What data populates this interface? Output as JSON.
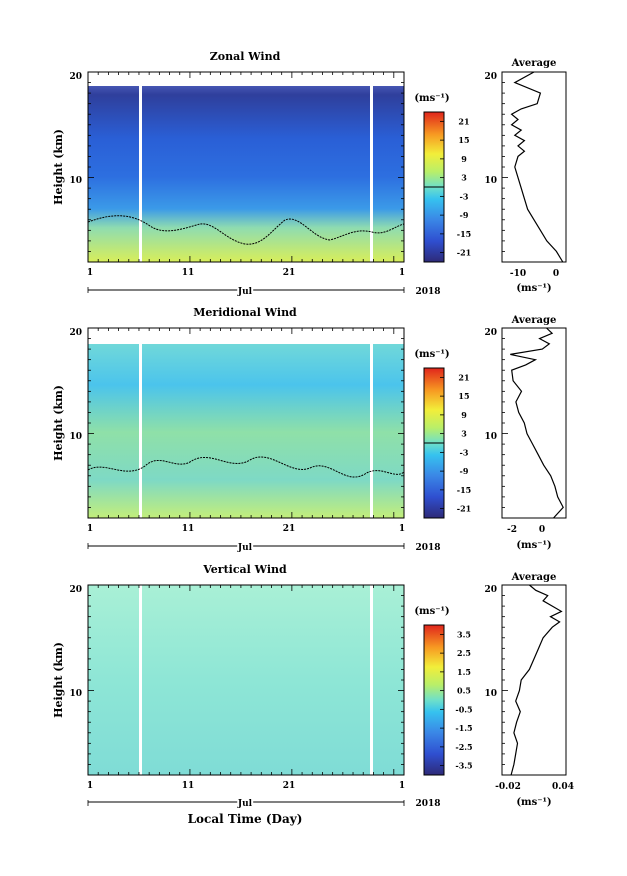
{
  "figure": {
    "xaxis_title": "Local Time (Day)",
    "year_label": "2018",
    "month_label": "Jul"
  },
  "chart_data": [
    {
      "type": "heatmap",
      "title": "Zonal Wind",
      "ylabel": "Height (km)",
      "xlabel": "Jul",
      "x_tick_labels": [
        "1",
        "11",
        "21",
        "1"
      ],
      "y_tick_labels": [
        "20",
        "10"
      ],
      "ylim": [
        2,
        20
      ],
      "xlim": [
        1,
        32
      ],
      "colorbar": {
        "unit": "(ms⁻¹)",
        "range": [
          -24,
          24
        ],
        "tick_labels": [
          "21",
          "15",
          "9",
          "3",
          "-3",
          "-9",
          "-15",
          "-21"
        ],
        "zero_line": true
      },
      "profile": {
        "title": "Average",
        "xlabel": "(ms⁻¹)",
        "x_tick_labels": [
          "-10",
          "0"
        ],
        "xlim": [
          -17,
          3
        ],
        "heights": [
          2,
          3,
          4,
          5,
          6,
          7,
          8,
          9,
          10,
          11,
          12,
          12.5,
          13,
          13.5,
          14,
          14.5,
          15,
          15.5,
          16,
          16.5,
          17,
          18,
          19,
          20
        ],
        "values": [
          2,
          0,
          -3,
          -5,
          -7,
          -9,
          -10,
          -11,
          -12,
          -13,
          -12,
          -10,
          -12,
          -10,
          -13,
          -11,
          -14,
          -12,
          -14,
          -11,
          -6,
          -5,
          -13,
          -7
        ]
      }
    },
    {
      "type": "heatmap",
      "title": "Meridional Wind",
      "ylabel": "Height (km)",
      "xlabel": "Jul",
      "x_tick_labels": [
        "1",
        "11",
        "21",
        "1"
      ],
      "y_tick_labels": [
        "20",
        "10"
      ],
      "ylim": [
        2,
        20
      ],
      "xlim": [
        1,
        32
      ],
      "colorbar": {
        "unit": "(ms⁻¹)",
        "range": [
          -24,
          24
        ],
        "tick_labels": [
          "21",
          "15",
          "9",
          "3",
          "-3",
          "-9",
          "-15",
          "-21"
        ],
        "zero_line": true
      },
      "profile": {
        "title": "Average",
        "xlabel": "(ms⁻¹)",
        "x_tick_labels": [
          "-2",
          "0"
        ],
        "xlim": [
          -3.2,
          1.4
        ],
        "heights": [
          2,
          3,
          4,
          5,
          6,
          7,
          8,
          9,
          10,
          11,
          12,
          13,
          14,
          15,
          16,
          16.5,
          17,
          17.5,
          18,
          18.5,
          19,
          19.5,
          20
        ],
        "values": [
          0.5,
          1.2,
          0.8,
          0.6,
          0.3,
          -0.2,
          -0.6,
          -1.0,
          -1.4,
          -1.6,
          -2.0,
          -2.2,
          -1.8,
          -2.4,
          -2.5,
          -1.5,
          -0.8,
          -2.6,
          -0.3,
          0.2,
          -0.5,
          0.4,
          0.0
        ]
      }
    },
    {
      "type": "heatmap",
      "title": "Vertical Wind",
      "ylabel": "Height (km)",
      "xlabel": "Jul",
      "x_tick_labels": [
        "1",
        "11",
        "21",
        "1"
      ],
      "y_tick_labels": [
        "20",
        "10"
      ],
      "ylim": [
        2,
        20
      ],
      "xlim": [
        1,
        32
      ],
      "colorbar": {
        "unit": "(ms⁻¹)",
        "range": [
          -4,
          4
        ],
        "tick_labels": [
          "3.5",
          "2.5",
          "1.5",
          "0.5",
          "-0.5",
          "-1.5",
          "-2.5",
          "-3.5"
        ],
        "zero_line": false
      },
      "profile": {
        "title": "Average",
        "xlabel": "(ms⁻¹)",
        "x_tick_labels": [
          "-0.02",
          "0.04"
        ],
        "xlim": [
          -0.025,
          0.045
        ],
        "heights": [
          2,
          3,
          4,
          5,
          6,
          7,
          8,
          9,
          10,
          11,
          12,
          13,
          14,
          15,
          16,
          16.5,
          17,
          17.5,
          18,
          18.5,
          19,
          19.5,
          20
        ],
        "values": [
          -0.015,
          -0.012,
          -0.01,
          -0.008,
          -0.012,
          -0.009,
          -0.005,
          -0.01,
          -0.006,
          -0.004,
          0.005,
          0.01,
          0.015,
          0.02,
          0.03,
          0.038,
          0.028,
          0.04,
          0.03,
          0.02,
          0.025,
          0.012,
          0.005
        ]
      }
    }
  ]
}
